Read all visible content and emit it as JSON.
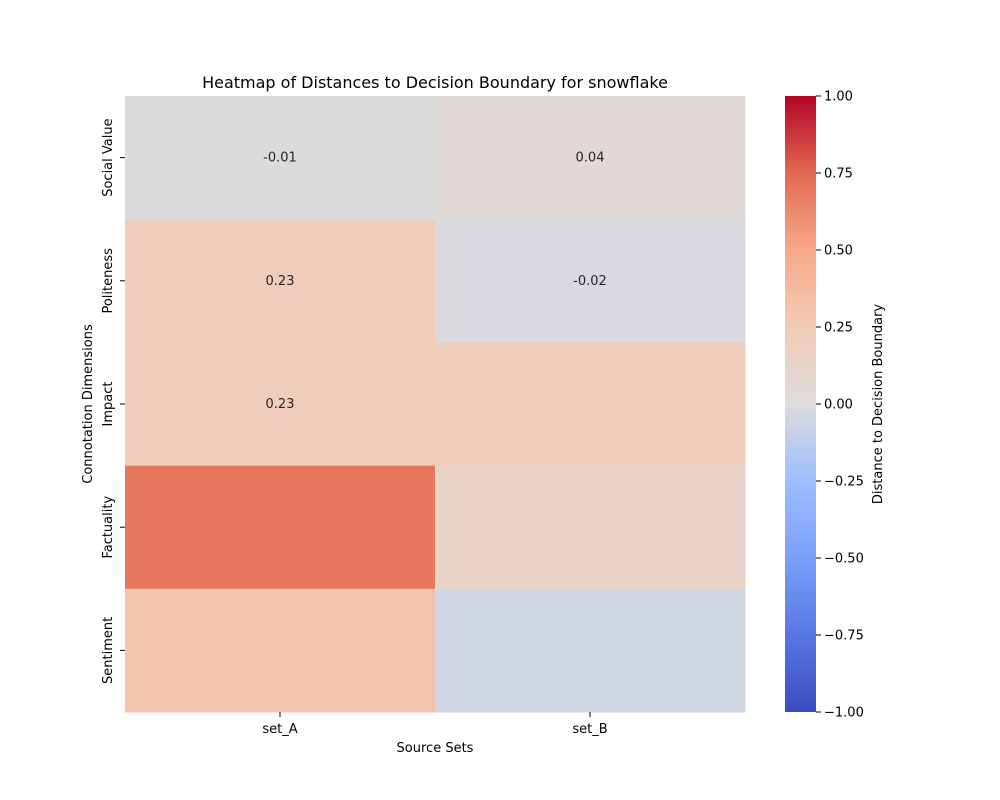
{
  "chart_data": {
    "type": "heatmap",
    "title": "Heatmap of Distances to Decision Boundary for snowflake",
    "xlabel": "Source Sets",
    "ylabel": "Connotation Dimensions",
    "x_categories": [
      "set_A",
      "set_B"
    ],
    "y_categories": [
      "Social Value",
      "Politeness",
      "Impact",
      "Factuality",
      "Sentiment"
    ],
    "values": [
      [
        -0.01,
        0.04
      ],
      [
        0.23,
        -0.02
      ],
      [
        0.23,
        0.23
      ],
      [
        0.7,
        0.14
      ],
      [
        0.3,
        -0.05
      ]
    ],
    "annotations": [
      [
        "-0.01",
        "0.04"
      ],
      [
        "0.23",
        "-0.02"
      ],
      [
        "0.23",
        ""
      ],
      [
        "",
        ""
      ],
      [
        "",
        ""
      ]
    ],
    "colorbar": {
      "label": "Distance to Decision Boundary",
      "vmin": -1.0,
      "vmax": 1.0,
      "ticks": [
        1.0,
        0.75,
        0.5,
        0.25,
        0.0,
        -0.25,
        -0.5,
        -0.75,
        -1.0
      ],
      "tick_labels": [
        "1.00",
        "0.75",
        "0.50",
        "0.25",
        "0.00",
        "−0.25",
        "−0.50",
        "−0.75",
        "−1.00"
      ],
      "colormap": "coolwarm"
    }
  }
}
